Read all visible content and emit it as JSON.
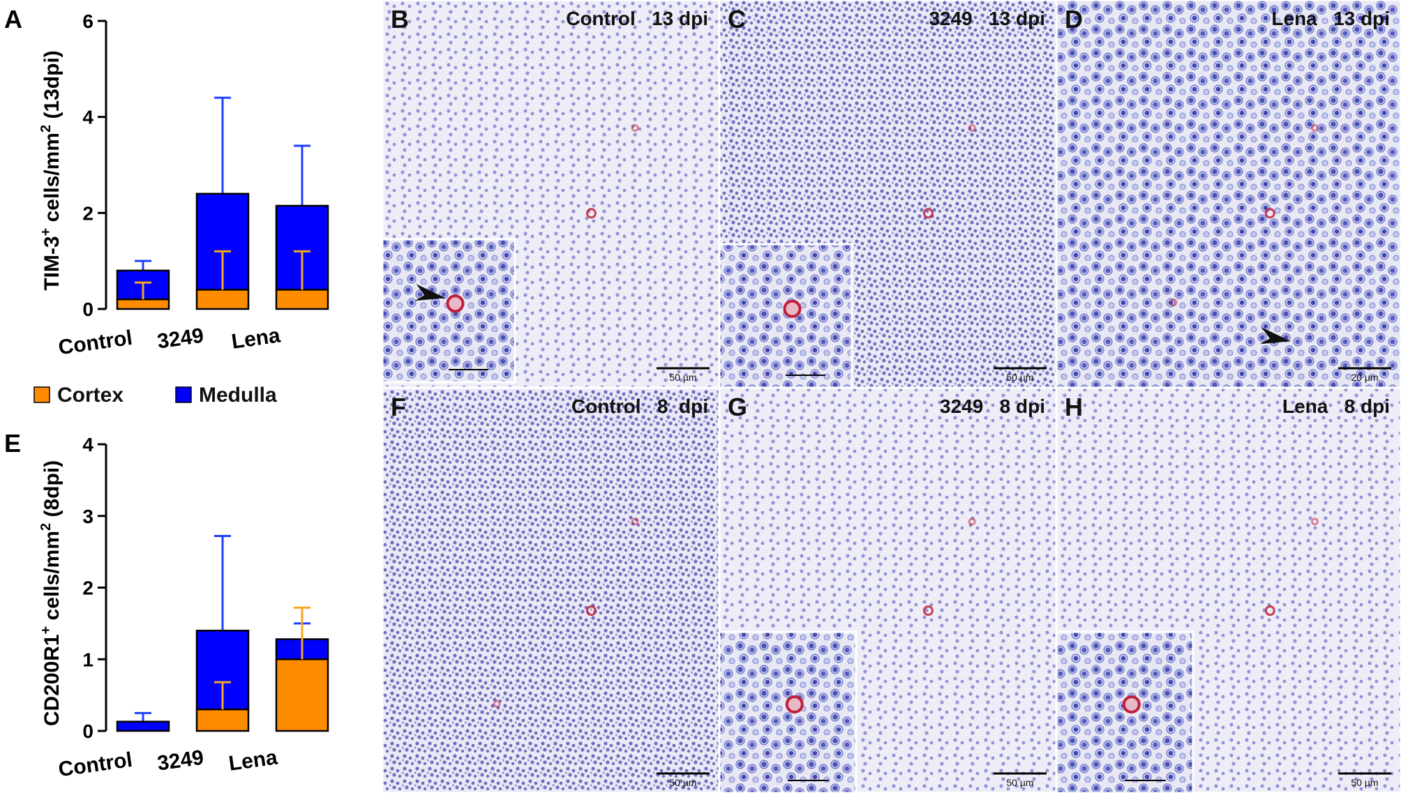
{
  "colors": {
    "cortex": "#ff8c00",
    "medulla": "#0000ff",
    "cortex_err": "#f5a623",
    "medulla_err": "#1f3fff",
    "tissue_bg": "#e9e7f4",
    "nuclei": "#4a4fb4",
    "positive_cell": "#c01e3a"
  },
  "legend": {
    "cortex": "Cortex",
    "medulla": "Medulla"
  },
  "chart_data": [
    {
      "type": "bar",
      "panel_letter": "A",
      "stacked": true,
      "categories": [
        "Control",
        "3249",
        "Lena"
      ],
      "ylabel_main": "TIM-3",
      "ylabel_sup": "+",
      "ylabel_mid": " cells/mm",
      "ylabel_sup2": "2",
      "ylabel_end": " (13dpi)",
      "ylim": [
        0,
        6
      ],
      "yticks": [
        "0",
        "2",
        "4",
        "6"
      ],
      "series": [
        {
          "name": "Cortex",
          "values": [
            0.2,
            0.4,
            0.4
          ],
          "errors": [
            0.35,
            0.8,
            0.8
          ]
        },
        {
          "name": "Medulla",
          "values": [
            0.6,
            2.0,
            1.75
          ],
          "errors": [
            0.2,
            2.0,
            1.25
          ]
        }
      ]
    },
    {
      "type": "bar",
      "panel_letter": "E",
      "stacked": true,
      "categories": [
        "Control",
        "3249",
        "Lena"
      ],
      "ylabel_main": "CD200R1",
      "ylabel_sup": "+",
      "ylabel_mid": " cells/mm",
      "ylabel_sup2": "2",
      "ylabel_end": " (8dpi)",
      "ylim": [
        0,
        4
      ],
      "yticks": [
        "0",
        "1",
        "2",
        "3",
        "4"
      ],
      "series": [
        {
          "name": "Cortex",
          "values": [
            0.0,
            0.3,
            1.0
          ],
          "errors": [
            0.0,
            0.38,
            0.72
          ]
        },
        {
          "name": "Medulla",
          "values": [
            0.13,
            1.1,
            0.28
          ],
          "errors": [
            0.12,
            1.32,
            0.22
          ]
        }
      ]
    }
  ],
  "micrographs": [
    {
      "letter": "B",
      "label": "Control   13 dpi",
      "scale": "50 µm",
      "inset": true,
      "arrow": true
    },
    {
      "letter": "C",
      "label": "3249   13 dpi",
      "scale": "50 µm",
      "inset": true,
      "arrow": false
    },
    {
      "letter": "D",
      "label": "Lena   13 dpi",
      "scale": "20 µm",
      "inset": false,
      "arrow": true
    },
    {
      "letter": "F",
      "label": "Control   8  dpi",
      "scale": "50 µm",
      "inset": false,
      "arrow": false
    },
    {
      "letter": "G",
      "label": "3249   8 dpi",
      "scale": "50 µm",
      "inset": true,
      "arrow": false
    },
    {
      "letter": "H",
      "label": "Lena   8 dpi",
      "scale": "50 µm",
      "inset": true,
      "arrow": false
    }
  ]
}
